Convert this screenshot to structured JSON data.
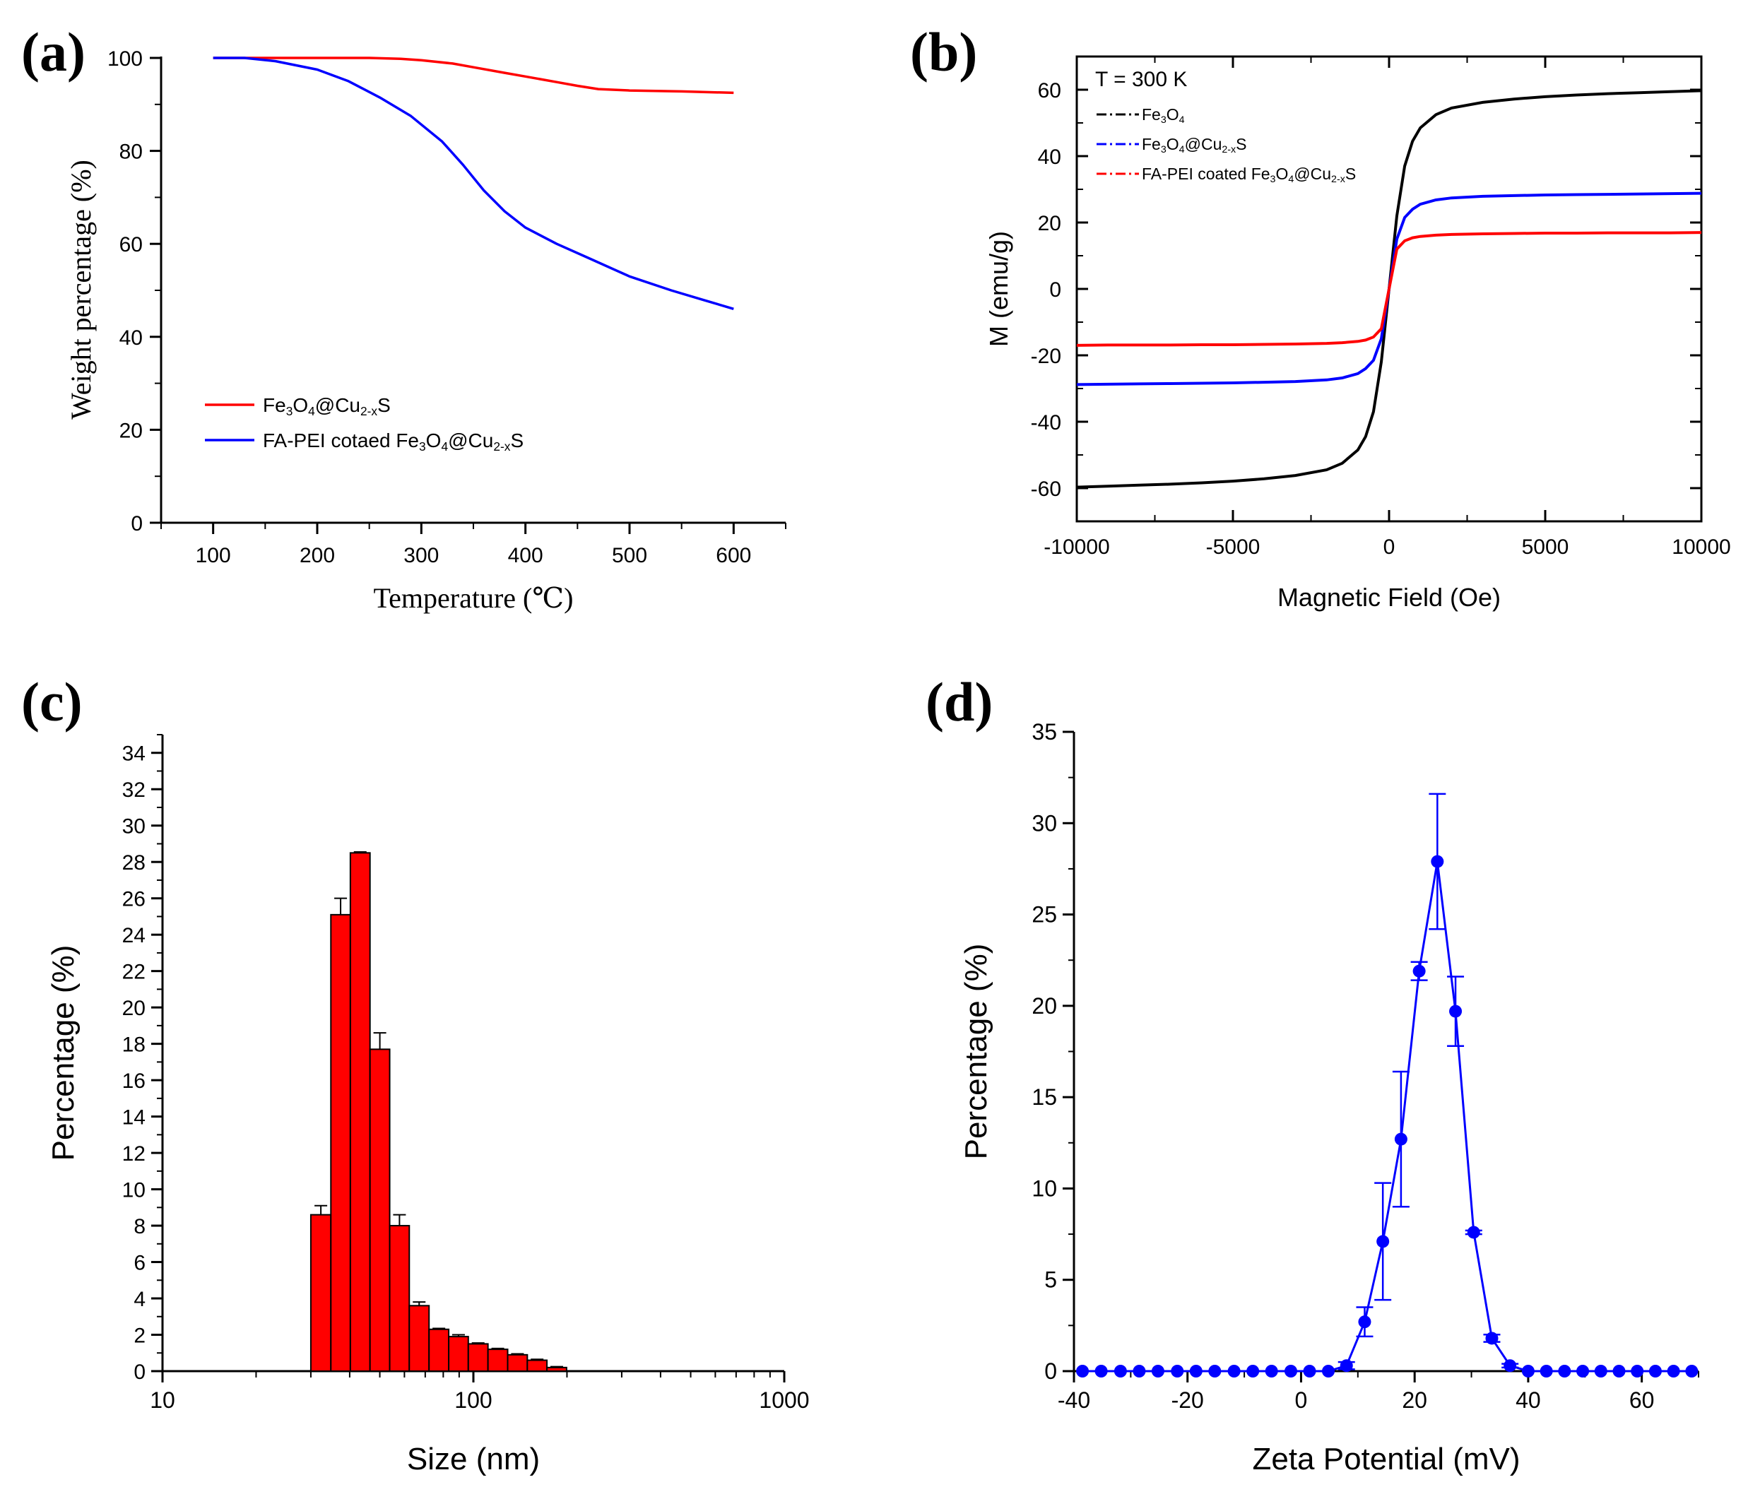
{
  "chart_data": [
    {
      "id": "a",
      "panel_label": "(a)",
      "type": "line",
      "xlabel": "Temperature (℃)",
      "ylabel": "Weight percentage (%)",
      "xlim": [
        50,
        650
      ],
      "ylim": [
        0,
        100
      ],
      "xticks": [
        100,
        200,
        300,
        400,
        500,
        600
      ],
      "yticks": [
        0,
        20,
        40,
        60,
        80,
        100
      ],
      "grid": false,
      "legend_position": "bottom-left",
      "series": [
        {
          "name": "Fe₃O₄@Cu₂₋ₓS",
          "color": "#ff0000",
          "x": [
            100,
            150,
            200,
            250,
            280,
            300,
            330,
            350,
            380,
            400,
            430,
            450,
            470,
            500,
            550,
            600
          ],
          "y": [
            100,
            100,
            100,
            100,
            99.8,
            99.5,
            98.8,
            98,
            96.8,
            96,
            94.8,
            94,
            93.3,
            93,
            92.8,
            92.5
          ]
        },
        {
          "name": "FA-PEI cotaed Fe₃O₄@Cu₂₋ₓS",
          "color": "#0000ff",
          "x": [
            100,
            130,
            160,
            200,
            230,
            260,
            290,
            320,
            340,
            360,
            380,
            400,
            430,
            460,
            500,
            540,
            570,
            600
          ],
          "y": [
            100,
            100,
            99.3,
            97.5,
            95,
            91.5,
            87.5,
            82,
            77,
            71.5,
            67,
            63.5,
            60,
            57,
            53,
            50,
            48,
            46
          ]
        }
      ]
    },
    {
      "id": "b",
      "panel_label": "(b)",
      "type": "line",
      "annotation": "T = 300 K",
      "xlabel": "Magnetic Field (Oe)",
      "ylabel": "M (emu/g)",
      "xlim": [
        -10000,
        10000
      ],
      "ylim": [
        -70,
        70
      ],
      "xticks": [
        -10000,
        -5000,
        0,
        5000,
        10000
      ],
      "yticks": [
        -60,
        -40,
        -20,
        0,
        20,
        40,
        60
      ],
      "grid": false,
      "legend_position": "top-left",
      "series": [
        {
          "name": "Fe₃O₄",
          "color": "#000000",
          "x": [
            0,
            250,
            500,
            750,
            1000,
            1500,
            2000,
            3000,
            4000,
            5000,
            6000,
            7000,
            8000,
            9000,
            10000
          ],
          "y": [
            0,
            22,
            37,
            44.5,
            48.5,
            52.5,
            54.5,
            56.2,
            57.2,
            57.9,
            58.4,
            58.8,
            59.1,
            59.4,
            59.7
          ]
        },
        {
          "name": "Fe₃O₄@Cu₂₋ₓS",
          "color": "#0000ff",
          "x": [
            0,
            250,
            500,
            750,
            1000,
            1500,
            2000,
            3000,
            4000,
            5000,
            6000,
            7000,
            8000,
            9000,
            10000
          ],
          "y": [
            0,
            15,
            21.5,
            24,
            25.5,
            26.8,
            27.4,
            27.9,
            28.1,
            28.3,
            28.4,
            28.5,
            28.6,
            28.7,
            28.8
          ]
        },
        {
          "name": "FA-PEI coated Fe₃O₄@Cu₂₋ₓS",
          "color": "#ff0000",
          "x": [
            0,
            250,
            500,
            750,
            1000,
            1500,
            2000,
            3000,
            4000,
            5000,
            6000,
            7000,
            8000,
            9000,
            10000
          ],
          "y": [
            0,
            12,
            14.5,
            15.4,
            15.8,
            16.2,
            16.4,
            16.6,
            16.7,
            16.8,
            16.8,
            16.9,
            16.9,
            16.9,
            17
          ]
        }
      ]
    },
    {
      "id": "c",
      "panel_label": "(c)",
      "type": "bar",
      "xscale": "log",
      "xlabel": "Size (nm)",
      "ylabel": "Percentage (%)",
      "xlim": [
        10,
        1000
      ],
      "ylim": [
        0,
        35
      ],
      "xticks": [
        10,
        100,
        1000
      ],
      "yticks": [
        0,
        2,
        4,
        6,
        8,
        10,
        12,
        14,
        16,
        18,
        20,
        22,
        24,
        26,
        28,
        30,
        32,
        34
      ],
      "grid": false,
      "color": "#ff0000",
      "bin_edges": [
        30,
        34.8,
        40.2,
        46.5,
        53.8,
        62.2,
        72,
        83.3,
        96.3,
        111.4,
        128.9,
        149.1,
        172.4,
        199.4
      ],
      "values": [
        8.6,
        25.1,
        28.5,
        17.7,
        8.0,
        3.6,
        2.3,
        1.9,
        1.5,
        1.2,
        0.9,
        0.6,
        0.2
      ],
      "errors": [
        0.5,
        0.9,
        0.05,
        0.9,
        0.6,
        0.2,
        0.05,
        0.1,
        0.05,
        0.05,
        0.05,
        0.05,
        0.05
      ]
    },
    {
      "id": "d",
      "panel_label": "(d)",
      "type": "scatter",
      "xlabel": "Zeta Potential (mV)",
      "ylabel": "Percentage (%)",
      "xlim": [
        -40,
        70
      ],
      "ylim": [
        0,
        35
      ],
      "xticks": [
        -40,
        -20,
        0,
        20,
        40,
        60
      ],
      "yticks": [
        0,
        5,
        10,
        15,
        20,
        25,
        30,
        35
      ],
      "grid": false,
      "color": "#0000ff",
      "x": [
        -38.5,
        -35.2,
        -31.8,
        -28.5,
        -25.2,
        -21.8,
        -18.5,
        -15.2,
        -11.8,
        -8.5,
        -5.2,
        -1.8,
        1.5,
        4.8,
        8.0,
        11.2,
        14.4,
        17.6,
        20.8,
        24.0,
        27.2,
        30.4,
        33.6,
        36.8,
        40.0,
        43.2,
        46.4,
        49.6,
        52.8,
        56.0,
        59.2,
        62.4,
        65.6,
        68.8
      ],
      "y": [
        0,
        0,
        0,
        0,
        0,
        0,
        0,
        0,
        0,
        0,
        0,
        0,
        0,
        0,
        0.3,
        2.7,
        7.1,
        12.7,
        21.9,
        27.9,
        19.7,
        7.6,
        1.8,
        0.3,
        0,
        0,
        0,
        0,
        0,
        0,
        0,
        0,
        0,
        0
      ],
      "errors": [
        0,
        0,
        0,
        0,
        0,
        0,
        0,
        0,
        0,
        0,
        0,
        0,
        0,
        0,
        0.2,
        0.8,
        3.2,
        3.7,
        0.5,
        3.7,
        1.9,
        0.1,
        0.2,
        0.1,
        0,
        0,
        0,
        0,
        0,
        0,
        0,
        0,
        0,
        0
      ]
    }
  ]
}
